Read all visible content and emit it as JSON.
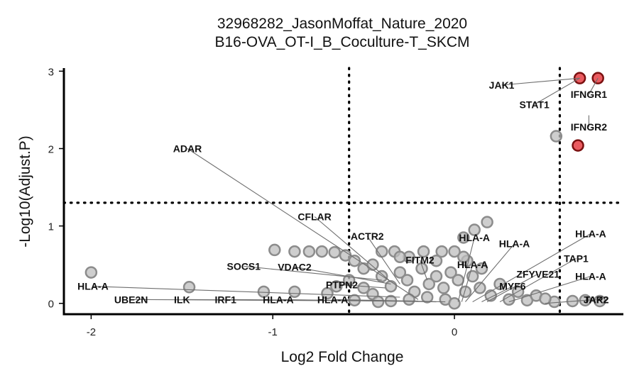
{
  "chart_data": {
    "type": "scatter",
    "title_line1": "32968282_JasonMoffat_Nature_2020",
    "title_line2": "B16-OVA_OT-I_B_Coculture-T_SKCM",
    "xlabel": "Log2 Fold Change",
    "ylabel": "-Log10(Adjust.P)",
    "xlim": [
      -2.15,
      0.93
    ],
    "ylim": [
      -0.14,
      3.04
    ],
    "x_ticks": [
      -2,
      -1,
      0
    ],
    "y_ticks": [
      0,
      1,
      2,
      3
    ],
    "x_thresholds": [
      -0.58,
      0.58
    ],
    "y_threshold": 1.3,
    "colors": {
      "background": "#bdbdbd",
      "background_stroke": "#8c8c8c",
      "significant": "#e8494f",
      "significant_stroke": "#7a1010",
      "reference_line": "#000000",
      "leader_line": "#6e6e6e"
    },
    "points": [
      {
        "x": 0.69,
        "y": 2.91,
        "sig": true
      },
      {
        "x": 0.79,
        "y": 2.91,
        "sig": true
      },
      {
        "x": 0.68,
        "y": 2.04,
        "sig": true
      },
      {
        "x": 0.56,
        "y": 2.16,
        "sig": false
      },
      {
        "x": -2.0,
        "y": 0.4,
        "sig": false
      },
      {
        "x": -1.46,
        "y": 0.21,
        "sig": false
      },
      {
        "x": -1.05,
        "y": 0.15,
        "sig": false
      },
      {
        "x": -0.88,
        "y": 0.15,
        "sig": false
      },
      {
        "x": -0.99,
        "y": 0.69,
        "sig": false
      },
      {
        "x": -0.88,
        "y": 0.67,
        "sig": false
      },
      {
        "x": -0.8,
        "y": 0.67,
        "sig": false
      },
      {
        "x": -0.73,
        "y": 0.67,
        "sig": false
      },
      {
        "x": -0.66,
        "y": 0.66,
        "sig": false
      },
      {
        "x": -0.6,
        "y": 0.62,
        "sig": false
      },
      {
        "x": -0.55,
        "y": 0.55,
        "sig": false
      },
      {
        "x": -0.5,
        "y": 0.45,
        "sig": false
      },
      {
        "x": -0.45,
        "y": 0.5,
        "sig": false
      },
      {
        "x": -0.4,
        "y": 0.67,
        "sig": false
      },
      {
        "x": -0.33,
        "y": 0.67,
        "sig": false
      },
      {
        "x": -0.25,
        "y": 0.6,
        "sig": false
      },
      {
        "x": -0.17,
        "y": 0.67,
        "sig": false
      },
      {
        "x": -0.07,
        "y": 0.67,
        "sig": false
      },
      {
        "x": 0.0,
        "y": 0.67,
        "sig": false
      },
      {
        "x": 0.05,
        "y": 0.85,
        "sig": false
      },
      {
        "x": 0.11,
        "y": 0.95,
        "sig": false
      },
      {
        "x": 0.18,
        "y": 1.05,
        "sig": false
      },
      {
        "x": 0.07,
        "y": 0.55,
        "sig": false
      },
      {
        "x": 0.15,
        "y": 0.45,
        "sig": false
      },
      {
        "x": -0.7,
        "y": 0.13,
        "sig": false
      },
      {
        "x": -0.65,
        "y": 0.22,
        "sig": false
      },
      {
        "x": -0.58,
        "y": 0.3,
        "sig": false
      },
      {
        "x": -0.5,
        "y": 0.2,
        "sig": false
      },
      {
        "x": -0.45,
        "y": 0.12,
        "sig": false
      },
      {
        "x": -0.4,
        "y": 0.35,
        "sig": false
      },
      {
        "x": -0.35,
        "y": 0.22,
        "sig": false
      },
      {
        "x": -0.3,
        "y": 0.4,
        "sig": false
      },
      {
        "x": -0.26,
        "y": 0.3,
        "sig": false
      },
      {
        "x": -0.22,
        "y": 0.15,
        "sig": false
      },
      {
        "x": -0.18,
        "y": 0.45,
        "sig": false
      },
      {
        "x": -0.14,
        "y": 0.25,
        "sig": false
      },
      {
        "x": -0.1,
        "y": 0.35,
        "sig": false
      },
      {
        "x": -0.06,
        "y": 0.2,
        "sig": false
      },
      {
        "x": -0.02,
        "y": 0.4,
        "sig": false
      },
      {
        "x": 0.02,
        "y": 0.3,
        "sig": false
      },
      {
        "x": 0.06,
        "y": 0.15,
        "sig": false
      },
      {
        "x": 0.1,
        "y": 0.35,
        "sig": false
      },
      {
        "x": 0.14,
        "y": 0.2,
        "sig": false
      },
      {
        "x": 0.2,
        "y": 0.1,
        "sig": false
      },
      {
        "x": 0.25,
        "y": 0.25,
        "sig": false
      },
      {
        "x": 0.3,
        "y": 0.05,
        "sig": false
      },
      {
        "x": 0.35,
        "y": 0.15,
        "sig": false
      },
      {
        "x": 0.4,
        "y": 0.04,
        "sig": false
      },
      {
        "x": 0.45,
        "y": 0.1,
        "sig": false
      },
      {
        "x": -0.35,
        "y": 0.03,
        "sig": false
      },
      {
        "x": -0.25,
        "y": 0.05,
        "sig": false
      },
      {
        "x": -0.15,
        "y": 0.08,
        "sig": false
      },
      {
        "x": -0.05,
        "y": 0.05,
        "sig": false
      },
      {
        "x": 0.0,
        "y": 0.0,
        "sig": false
      },
      {
        "x": -0.42,
        "y": 0.02,
        "sig": false
      },
      {
        "x": -0.55,
        "y": 0.04,
        "sig": false
      },
      {
        "x": 0.55,
        "y": 0.02,
        "sig": false
      },
      {
        "x": 0.65,
        "y": 0.03,
        "sig": false
      },
      {
        "x": 0.72,
        "y": 0.04,
        "sig": false
      },
      {
        "x": 0.8,
        "y": 0.03,
        "sig": false
      },
      {
        "x": 0.5,
        "y": 0.06,
        "sig": false
      },
      {
        "x": -0.3,
        "y": 0.6,
        "sig": false
      },
      {
        "x": 0.05,
        "y": 0.6,
        "sig": false
      },
      {
        "x": -0.1,
        "y": 0.55,
        "sig": false
      }
    ],
    "labels": [
      {
        "text": "JAK1",
        "tx": 0.26,
        "ty": 2.82,
        "px": 0.69,
        "py": 2.91,
        "line": true
      },
      {
        "text": "STAT1",
        "tx": 0.44,
        "ty": 2.57,
        "px": 0.69,
        "py": 2.91,
        "line": true
      },
      {
        "text": "IFNGR1",
        "tx": 0.74,
        "ty": 2.7,
        "px": 0.79,
        "py": 2.91,
        "line": true
      },
      {
        "text": "IFNGR2",
        "tx": 0.74,
        "ty": 2.28,
        "px": 0.74,
        "py": 2.43,
        "line": true
      },
      {
        "text": "ADAR",
        "tx": -1.47,
        "ty": 2.0,
        "px": -0.2,
        "py": 0.05,
        "line": true
      },
      {
        "text": "CFLAR",
        "tx": -0.77,
        "ty": 1.12,
        "px": -0.36,
        "py": 0.3,
        "line": true
      },
      {
        "text": "ACTR2",
        "tx": -0.48,
        "ty": 0.87,
        "px": -0.3,
        "py": 0.25,
        "line": true
      },
      {
        "text": "SOCS1",
        "tx": -1.16,
        "ty": 0.48,
        "px": -0.4,
        "py": 0.3,
        "line": true
      },
      {
        "text": "VDAC2",
        "tx": -0.88,
        "ty": 0.47,
        "px": -0.35,
        "py": 0.25,
        "line": true
      },
      {
        "text": "FITM2",
        "tx": -0.19,
        "ty": 0.56,
        "px": -0.15,
        "py": 0.3,
        "line": true
      },
      {
        "text": "PTPN2",
        "tx": -0.62,
        "ty": 0.24,
        "px": -0.38,
        "py": 0.2,
        "line": true
      },
      {
        "text": "HLA-A",
        "tx": -1.99,
        "ty": 0.22,
        "px": -0.3,
        "py": 0.08,
        "line": true
      },
      {
        "text": "UBE2N",
        "tx": -1.78,
        "ty": 0.05,
        "px": -0.3,
        "py": 0.03,
        "line": true
      },
      {
        "text": "ILK",
        "tx": -1.5,
        "ty": 0.05,
        "px": -0.3,
        "py": 0.03,
        "line": true
      },
      {
        "text": "IRF1",
        "tx": -1.26,
        "ty": 0.05,
        "px": -0.2,
        "py": 0.03,
        "line": true
      },
      {
        "text": "HLA-A",
        "tx": -0.97,
        "ty": 0.05,
        "px": -0.1,
        "py": 0.02,
        "line": true
      },
      {
        "text": "HLA-A",
        "tx": -0.67,
        "ty": 0.05,
        "px": -0.05,
        "py": 0.02,
        "line": true
      },
      {
        "text": "HLA-A",
        "tx": 0.11,
        "ty": 0.85,
        "px": 0.02,
        "py": 0.02,
        "line": true
      },
      {
        "text": "HLA-A",
        "tx": 0.33,
        "ty": 0.77,
        "px": 0.06,
        "py": 0.02,
        "line": true
      },
      {
        "text": "HLA-A",
        "tx": 0.75,
        "ty": 0.9,
        "px": 0.1,
        "py": 0.02,
        "line": true
      },
      {
        "text": "HLA-A",
        "tx": 0.1,
        "ty": 0.5,
        "px": 0.04,
        "py": 0.02,
        "line": true
      },
      {
        "text": "TAP1",
        "tx": 0.67,
        "ty": 0.58,
        "px": 0.25,
        "py": 0.02,
        "line": true
      },
      {
        "text": "ZFYVE21",
        "tx": 0.46,
        "ty": 0.38,
        "px": 0.18,
        "py": 0.02,
        "line": true
      },
      {
        "text": "HLA-A",
        "tx": 0.75,
        "ty": 0.35,
        "px": 0.3,
        "py": 0.02,
        "line": true
      },
      {
        "text": "MYF6",
        "tx": 0.32,
        "ty": 0.22,
        "px": 0.15,
        "py": 0.02,
        "line": true
      },
      {
        "text": "JAK2",
        "tx": 0.78,
        "ty": 0.05,
        "px": 0.5,
        "py": 0.0,
        "line": true
      },
      {
        "text": "TAP2",
        "tx": 0.78,
        "ty": 0.05,
        "px": 0.5,
        "py": 0.0,
        "line": false
      }
    ]
  }
}
